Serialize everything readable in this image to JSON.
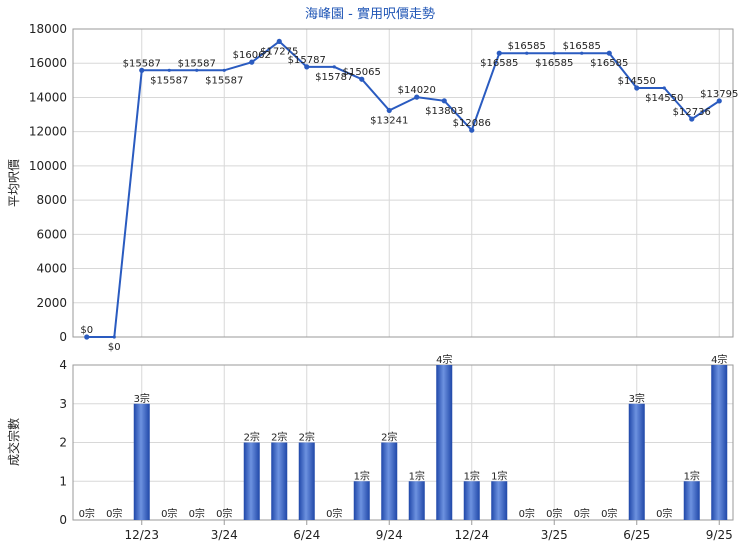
{
  "chart_data": [
    {
      "type": "line",
      "title": "海峰園 - 實用呎價走勢",
      "xlabel": "",
      "ylabel": "平均呎價",
      "ylim": [
        0,
        18000
      ],
      "yticks": [
        0,
        2000,
        4000,
        6000,
        8000,
        10000,
        12000,
        14000,
        16000,
        18000
      ],
      "grid": true,
      "x_tick_labels": [
        "12/23",
        "3/24",
        "6/24",
        "9/24",
        "12/24",
        "3/25",
        "6/25",
        "9/25"
      ],
      "x_tick_positions": [
        2,
        5,
        8,
        11,
        14,
        17,
        20,
        23
      ],
      "x": [
        0,
        1,
        2,
        3,
        4,
        5,
        6,
        7,
        8,
        9,
        10,
        11,
        12,
        13,
        14,
        15,
        16,
        17,
        18,
        19,
        20,
        21,
        22,
        23
      ],
      "values": [
        0,
        0,
        15587,
        15587,
        15587,
        15587,
        16062,
        17275,
        15787,
        15787,
        15065,
        13241,
        14020,
        13803,
        12086,
        16585,
        16585,
        16585,
        16585,
        16585,
        14550,
        14550,
        12736,
        13795
      ],
      "data_labels": [
        "$0",
        "$0",
        "$15587",
        "$15587",
        "$15587",
        "$15587",
        "$16062",
        "$17275",
        "$15787",
        "$15787",
        "$15065",
        "$13241",
        "$14020",
        "$13803",
        "$12086",
        "$16585",
        "$16585",
        "$16585",
        "$16585",
        "$16585",
        "$14550",
        "$14550",
        "$12736",
        "$13795"
      ],
      "carried_forward": [
        false,
        true,
        false,
        true,
        true,
        true,
        false,
        false,
        false,
        true,
        false,
        false,
        false,
        false,
        false,
        false,
        true,
        true,
        true,
        false,
        false,
        true,
        false,
        false
      ]
    },
    {
      "type": "bar",
      "title": "",
      "xlabel": "",
      "ylabel": "成交宗數",
      "ylim": [
        0,
        4
      ],
      "yticks": [
        0,
        1,
        2,
        3,
        4
      ],
      "grid": true,
      "x_tick_labels": [
        "12/23",
        "3/24",
        "6/24",
        "9/24",
        "12/24",
        "3/25",
        "6/25",
        "9/25"
      ],
      "x_tick_positions": [
        2,
        5,
        8,
        11,
        14,
        17,
        20,
        23
      ],
      "values": [
        0,
        0,
        3,
        0,
        0,
        0,
        2,
        2,
        2,
        0,
        1,
        2,
        1,
        4,
        1,
        1,
        0,
        0,
        0,
        0,
        3,
        0,
        1,
        4
      ],
      "data_labels": [
        "0宗",
        "0宗",
        "3宗",
        "0宗",
        "0宗",
        "0宗",
        "2宗",
        "2宗",
        "2宗",
        "0宗",
        "1宗",
        "2宗",
        "1宗",
        "4宗",
        "1宗",
        "1宗",
        "0宗",
        "0宗",
        "0宗",
        "0宗",
        "3宗",
        "0宗",
        "1宗",
        "4宗"
      ],
      "bar_color": "#3a66c4"
    }
  ],
  "colors": {
    "line": "#2a5bc0",
    "bar": "#3a66c4",
    "title": "#1f55b5",
    "grid": "#d8d8d8"
  }
}
